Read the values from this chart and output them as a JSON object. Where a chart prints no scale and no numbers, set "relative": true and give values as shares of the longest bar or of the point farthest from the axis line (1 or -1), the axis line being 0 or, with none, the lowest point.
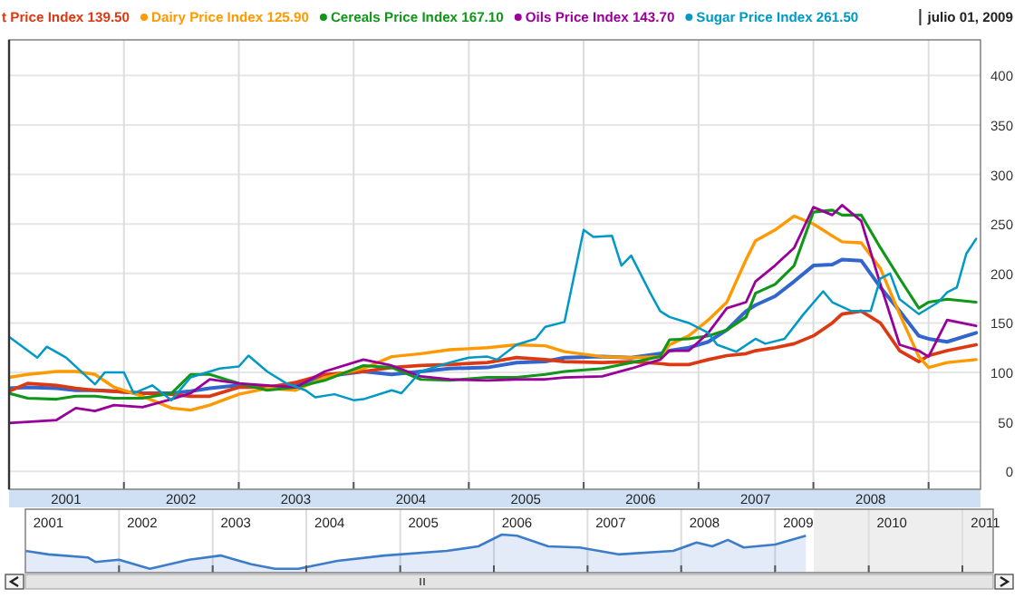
{
  "chart_data": [
    {
      "type": "line",
      "x": [
        "2001-01",
        "2001-03",
        "2001-06",
        "2001-08",
        "2001-10",
        "2001-12",
        "2002-03",
        "2002-06",
        "2002-08",
        "2002-10",
        "2003-01",
        "2003-04",
        "2003-07",
        "2003-10",
        "2004-02",
        "2004-05",
        "2004-08",
        "2004-11",
        "2005-03",
        "2005-06",
        "2005-09",
        "2005-11",
        "2006-03",
        "2006-06",
        "2006-09",
        "2006-10",
        "2006-12",
        "2007-02",
        "2007-04",
        "2007-06",
        "2007-07",
        "2007-09",
        "2007-11",
        "2008-01",
        "2008-03",
        "2008-04",
        "2008-06",
        "2008-08",
        "2008-10",
        "2008-12",
        "2009-01",
        "2009-03",
        "2009-06"
      ],
      "series": [
        {
          "color": "#3366cc",
          "values": [
            84,
            85,
            84,
            82,
            82,
            81,
            79,
            79,
            81,
            84,
            87,
            85,
            87,
            96,
            101,
            98,
            101,
            104,
            105,
            110,
            111,
            115,
            116,
            115,
            119,
            122,
            125,
            131,
            143,
            162,
            168,
            177,
            192,
            208,
            209,
            214,
            213,
            186,
            162,
            137,
            134,
            131,
            140
          ]
        },
        {
          "name": "t Price Index 139.50",
          "color": "#dc3912",
          "values": [
            81,
            89,
            87,
            84,
            82,
            81,
            79,
            78,
            76,
            76,
            85,
            85,
            90,
            98,
            101,
            105,
            107,
            108,
            110,
            115,
            113,
            111,
            110,
            111,
            109,
            108,
            108,
            113,
            117,
            119,
            122,
            125,
            129,
            137,
            150,
            159,
            162,
            150,
            122,
            111,
            117,
            122,
            128
          ]
        },
        {
          "name": "Dairy Price Index 125.90",
          "color": "#ff9900",
          "values": [
            95,
            98,
            101,
            101,
            98,
            85,
            76,
            64,
            62,
            67,
            78,
            84,
            82,
            95,
            104,
            116,
            119,
            123,
            125,
            128,
            127,
            121,
            116,
            115,
            116,
            128,
            137,
            153,
            171,
            214,
            233,
            244,
            258,
            250,
            238,
            232,
            231,
            205,
            159,
            116,
            105,
            110,
            113
          ]
        },
        {
          "name": "Cereals Price Index 167.10",
          "color": "#109618",
          "values": [
            79,
            74,
            73,
            76,
            76,
            74,
            74,
            79,
            98,
            98,
            89,
            82,
            85,
            92,
            107,
            105,
            93,
            92,
            95,
            95,
            98,
            101,
            104,
            110,
            116,
            133,
            134,
            137,
            143,
            156,
            180,
            189,
            208,
            262,
            264,
            259,
            259,
            226,
            195,
            165,
            171,
            174,
            171
          ]
        },
        {
          "name": "Oils Price Index 143.70",
          "color": "#990099",
          "values": [
            49,
            50,
            52,
            64,
            61,
            67,
            65,
            73,
            79,
            93,
            89,
            87,
            85,
            101,
            113,
            107,
            96,
            93,
            92,
            93,
            93,
            95,
            96,
            104,
            113,
            122,
            122,
            140,
            165,
            171,
            192,
            208,
            226,
            267,
            259,
            269,
            253,
            189,
            128,
            122,
            116,
            153,
            147
          ]
        },
        {
          "name": "Sugar Price Index 261.50",
          "color": "#0099c6",
          "x": [
            "2001-01",
            "2001-04",
            "2001-05",
            "2001-07",
            "2001-10",
            "2001-11",
            "2002-01",
            "2002-02",
            "2002-04",
            "2002-06",
            "2002-08",
            "2002-11",
            "2003-01",
            "2003-02",
            "2003-04",
            "2003-06",
            "2003-08",
            "2003-09",
            "2003-11",
            "2004-01",
            "2004-02",
            "2004-05",
            "2004-06",
            "2004-08",
            "2004-11",
            "2005-01",
            "2005-03",
            "2005-04",
            "2005-06",
            "2005-08",
            "2005-09",
            "2005-11",
            "2006-01",
            "2006-02",
            "2006-04",
            "2006-05",
            "2006-06",
            "2006-08",
            "2006-09",
            "2006-10",
            "2006-12",
            "2007-02",
            "2007-03",
            "2007-05",
            "2007-07",
            "2007-08",
            "2007-10",
            "2007-12",
            "2008-02",
            "2008-03",
            "2008-05",
            "2008-07",
            "2008-08",
            "2008-09",
            "2008-10",
            "2008-12",
            "2009-02",
            "2009-03",
            "2009-04",
            "2009-05",
            "2009-06"
          ],
          "values": [
            136,
            115,
            126,
            115,
            88,
            100,
            100,
            79,
            87,
            72,
            95,
            104,
            106,
            117,
            101,
            89,
            82,
            75,
            78,
            72,
            73,
            82,
            79,
            101,
            110,
            115,
            116,
            113,
            128,
            134,
            146,
            151,
            244,
            237,
            238,
            208,
            218,
            180,
            162,
            156,
            150,
            140,
            128,
            121,
            134,
            129,
            134,
            159,
            182,
            171,
            162,
            162,
            195,
            200,
            174,
            159,
            171,
            181,
            186,
            220,
            235
          ]
        }
      ],
      "xlim": [
        "2001-01-01",
        "2009-06-15"
      ],
      "ylim": [
        -18,
        436
      ],
      "xticks": [
        {
          "value": "2001-07-01",
          "label": "2001"
        },
        {
          "value": "2002-07-01",
          "label": "2002"
        },
        {
          "value": "2003-07-01",
          "label": "2003"
        },
        {
          "value": "2004-07-01",
          "label": "2004"
        },
        {
          "value": "2005-07-01",
          "label": "2005"
        },
        {
          "value": "2006-07-01",
          "label": "2006"
        },
        {
          "value": "2007-07-01",
          "label": "2007"
        },
        {
          "value": "2008-07-01",
          "label": "2008"
        },
        {
          "value": "2002-01-01",
          "label": null
        },
        {
          "value": "2003-01-01",
          "label": null
        },
        {
          "value": "2004-01-01",
          "label": null
        },
        {
          "value": "2005-01-01",
          "label": null
        },
        {
          "value": "2006-01-01",
          "label": null
        },
        {
          "value": "2007-01-01",
          "label": null
        },
        {
          "value": "2008-01-01",
          "label": null
        },
        {
          "value": "2009-01-01",
          "label": null
        }
      ],
      "yticks": [
        0,
        50,
        100,
        150,
        200,
        250,
        300,
        350,
        400
      ],
      "grid": true,
      "legend": "top",
      "annotations": [
        "julio 01, 2009"
      ]
    },
    {
      "type": "area",
      "relative": true,
      "color": "#3d7cc9",
      "x": [
        "2001-01",
        "2001-04",
        "2001-09",
        "2001-10",
        "2002-01",
        "2002-05",
        "2002-10",
        "2003-02",
        "2003-06",
        "2003-09",
        "2003-12",
        "2004-05",
        "2004-11",
        "2005-07",
        "2005-11",
        "2006-02",
        "2006-04",
        "2006-08",
        "2006-12",
        "2007-05",
        "2007-12",
        "2008-03",
        "2008-05",
        "2008-07",
        "2008-09",
        "2009-01",
        "2009-05"
      ],
      "values": [
        0.57,
        0.48,
        0.4,
        0.28,
        0.34,
        0.1,
        0.34,
        0.45,
        0.22,
        0.1,
        0.1,
        0.31,
        0.45,
        0.57,
        0.69,
        1,
        0.97,
        0.69,
        0.66,
        0.48,
        0.57,
        0.79,
        0.69,
        0.86,
        0.66,
        0.74,
        0.97
      ],
      "xlim": [
        "2001-01-01",
        "2011-05-01"
      ],
      "xticks": [
        {
          "value": "2001-04-01",
          "label": "2001"
        },
        {
          "value": "2002-04-01",
          "label": "2002"
        },
        {
          "value": "2003-04-01",
          "label": "2003"
        },
        {
          "value": "2004-04-01",
          "label": "2004"
        },
        {
          "value": "2005-04-01",
          "label": "2005"
        },
        {
          "value": "2006-04-01",
          "label": "2006"
        },
        {
          "value": "2007-04-01",
          "label": "2007"
        },
        {
          "value": "2008-04-01",
          "label": "2008"
        },
        {
          "value": "2009-04-01",
          "label": "2009"
        },
        {
          "value": "2010-04-01",
          "label": "2010"
        },
        {
          "value": "2011-04-01",
          "label": "2011"
        },
        {
          "value": "2002-01-01",
          "label": null
        },
        {
          "value": "2003-01-01",
          "label": null
        },
        {
          "value": "2004-01-01",
          "label": null
        },
        {
          "value": "2005-01-01",
          "label": null
        },
        {
          "value": "2006-01-01",
          "label": null
        },
        {
          "value": "2007-01-01",
          "label": null
        },
        {
          "value": "2008-01-01",
          "label": null
        },
        {
          "value": "2009-01-01",
          "label": null
        },
        {
          "value": "2010-01-01",
          "label": null
        },
        {
          "value": "2011-01-01",
          "label": null
        }
      ],
      "grid": "x",
      "bands": [
        {
          "axis": "x",
          "from": "2009-06-01",
          "to": "2011-05-01",
          "color": "#eeeeee"
        }
      ]
    }
  ]
}
